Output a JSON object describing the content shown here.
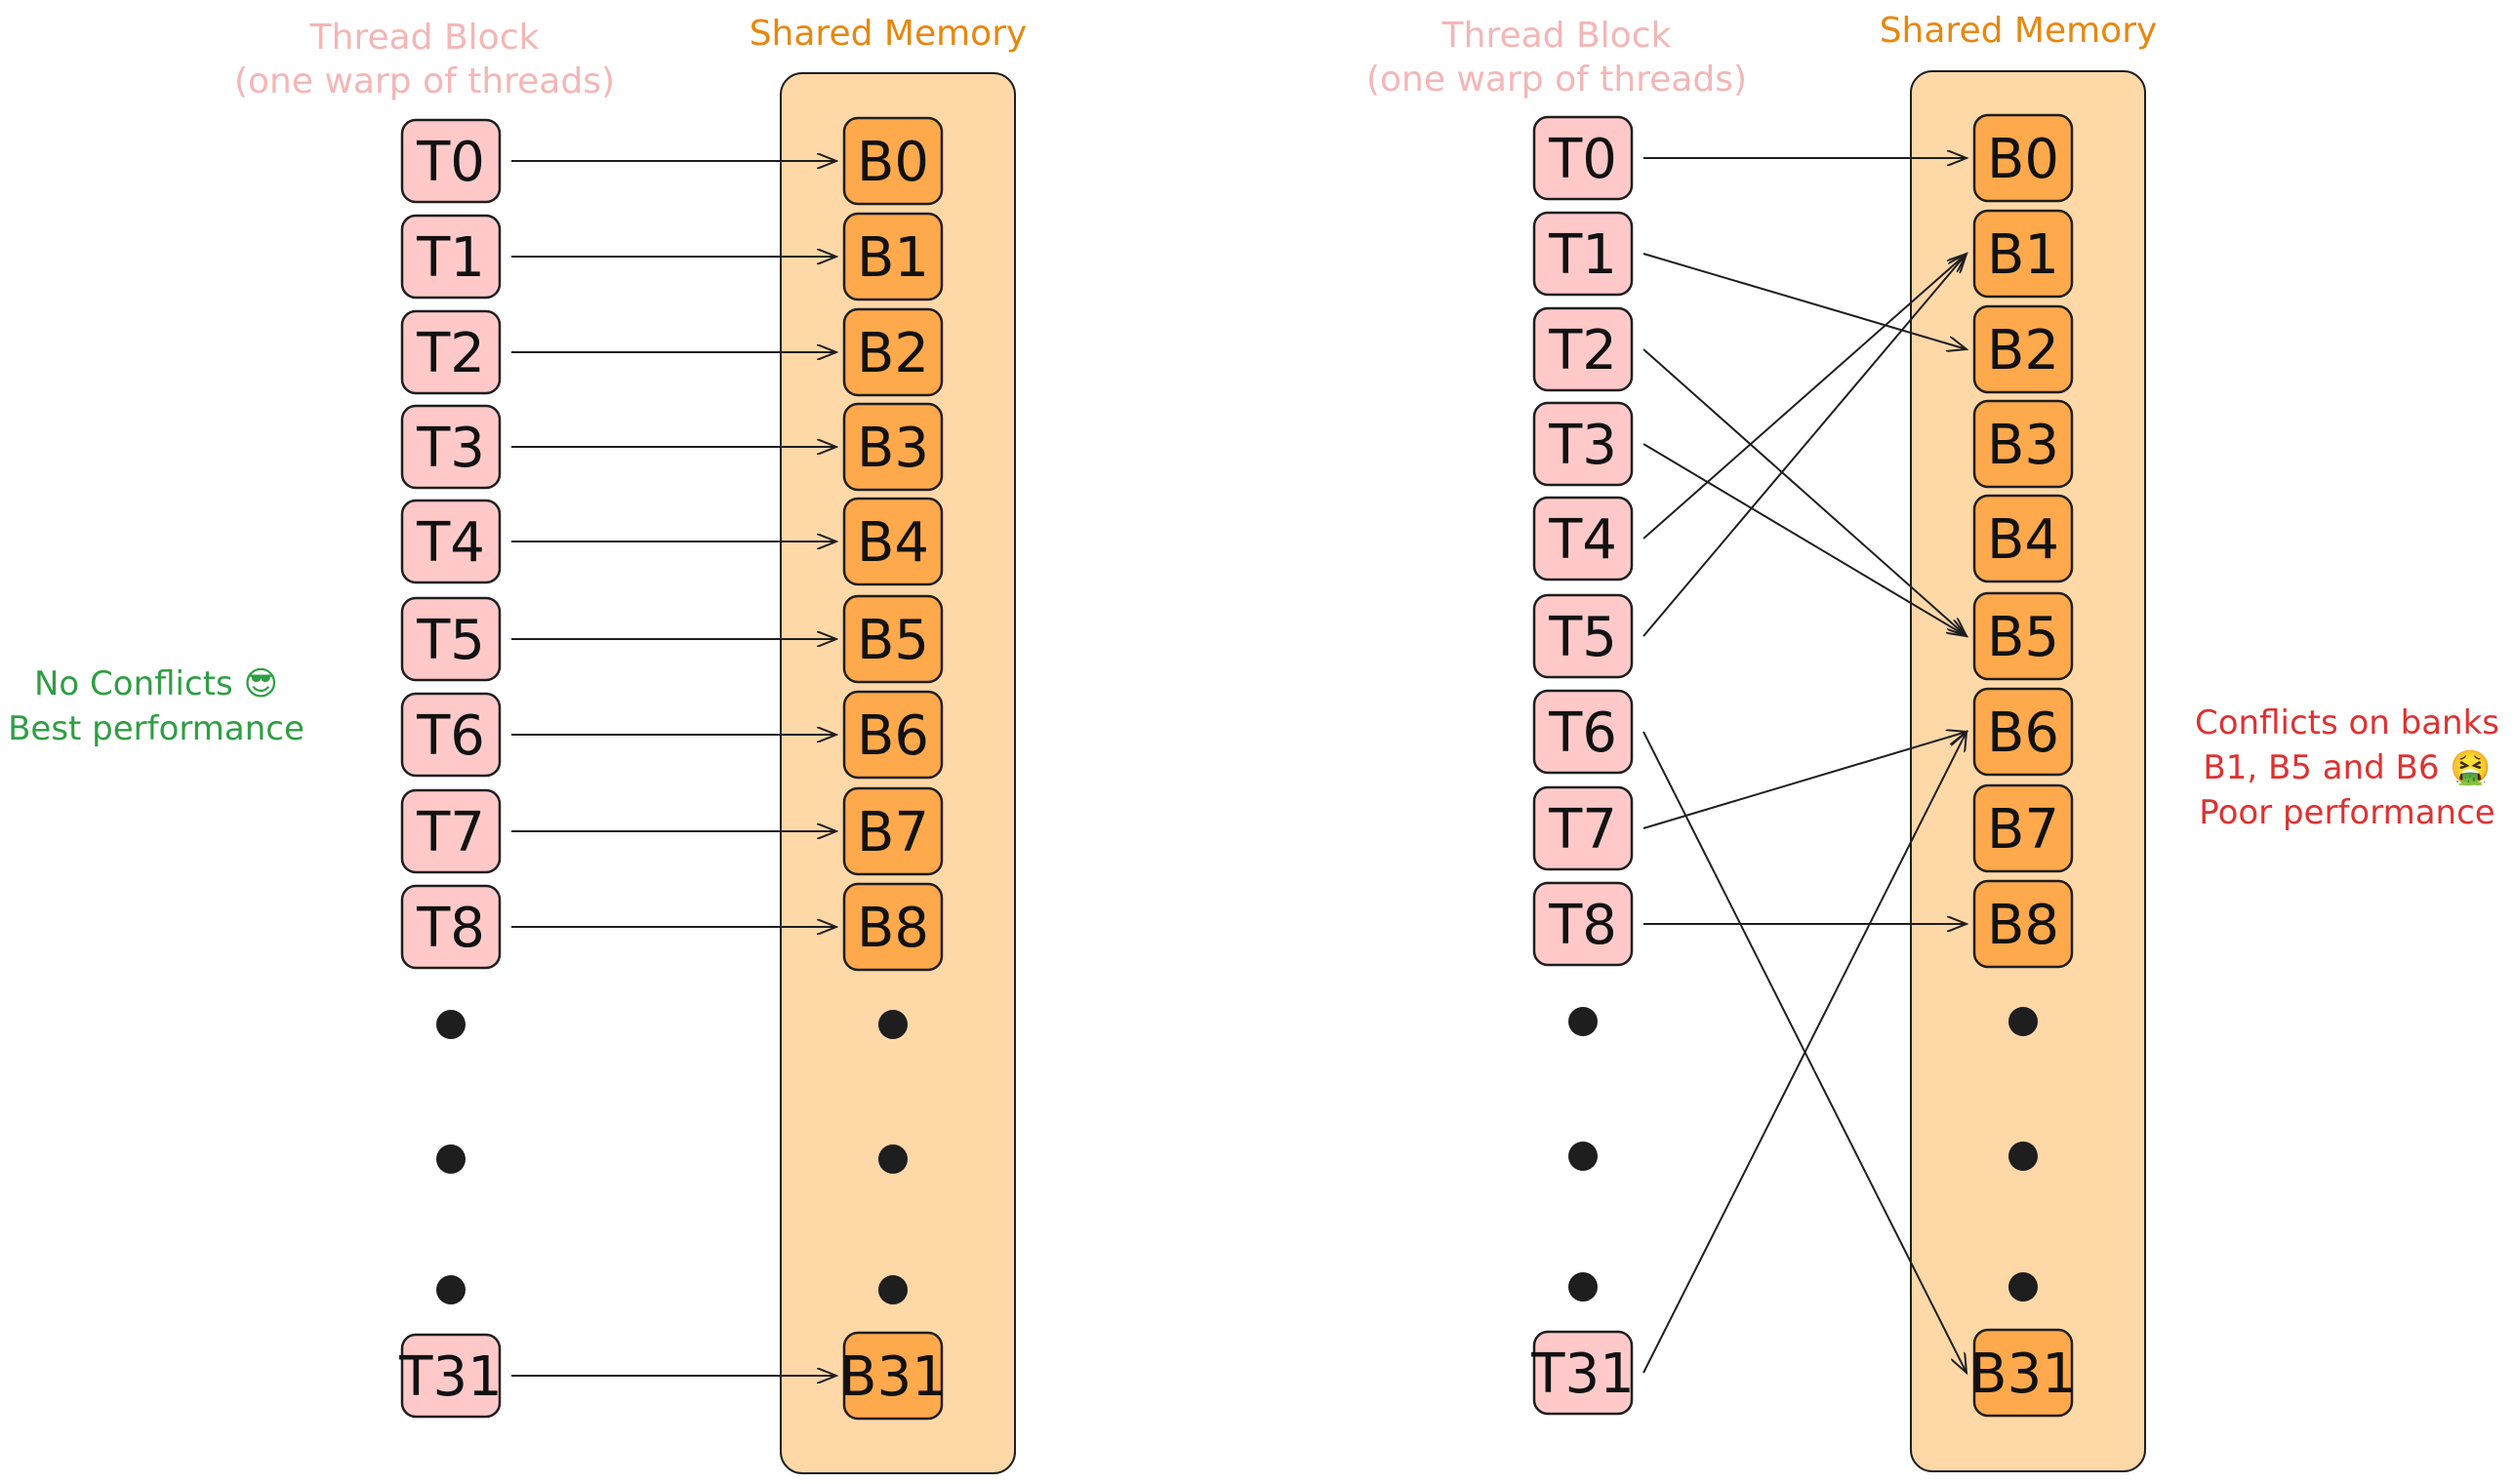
{
  "left": {
    "thread_title_1": "Thread Block",
    "thread_title_2": "(one warp of threads)",
    "shared_title": "Shared Memory",
    "note_line1": "No Conflicts 😎",
    "note_line2": "Best performance",
    "threads": [
      "T0",
      "T1",
      "T2",
      "T3",
      "T4",
      "T5",
      "T6",
      "T7",
      "T8",
      "T31"
    ],
    "banks": [
      "B0",
      "B1",
      "B2",
      "B3",
      "B4",
      "B5",
      "B6",
      "B7",
      "B8",
      "B31"
    ],
    "mapping": [
      [
        "T0",
        "B0"
      ],
      [
        "T1",
        "B1"
      ],
      [
        "T2",
        "B2"
      ],
      [
        "T3",
        "B3"
      ],
      [
        "T4",
        "B4"
      ],
      [
        "T5",
        "B5"
      ],
      [
        "T6",
        "B6"
      ],
      [
        "T7",
        "B7"
      ],
      [
        "T8",
        "B8"
      ],
      [
        "T31",
        "B31"
      ]
    ]
  },
  "right": {
    "thread_title_1": "Thread Block",
    "thread_title_2": "(one warp of threads)",
    "shared_title": "Shared Memory",
    "note_line1": "Conflicts on banks",
    "note_line2": "B1, B5 and B6 🤮",
    "note_line3": "Poor performance",
    "threads": [
      "T0",
      "T1",
      "T2",
      "T3",
      "T4",
      "T5",
      "T6",
      "T7",
      "T8",
      "T31"
    ],
    "banks": [
      "B0",
      "B1",
      "B2",
      "B3",
      "B4",
      "B5",
      "B6",
      "B7",
      "B8",
      "B31"
    ],
    "mapping": [
      [
        "T0",
        "B0"
      ],
      [
        "T1",
        "B2"
      ],
      [
        "T2",
        "B5"
      ],
      [
        "T3",
        "B5"
      ],
      [
        "T4",
        "B1"
      ],
      [
        "T5",
        "B1"
      ],
      [
        "T6",
        "B31"
      ],
      [
        "T7",
        "B6"
      ],
      [
        "T8",
        "B8"
      ],
      [
        "T31",
        "B6"
      ]
    ]
  },
  "colors": {
    "thread_fill": "#ffc9c9",
    "bank_fill": "#ffa94d",
    "shared_bg": "#ffd8a8",
    "stroke": "#1e1e1e"
  }
}
